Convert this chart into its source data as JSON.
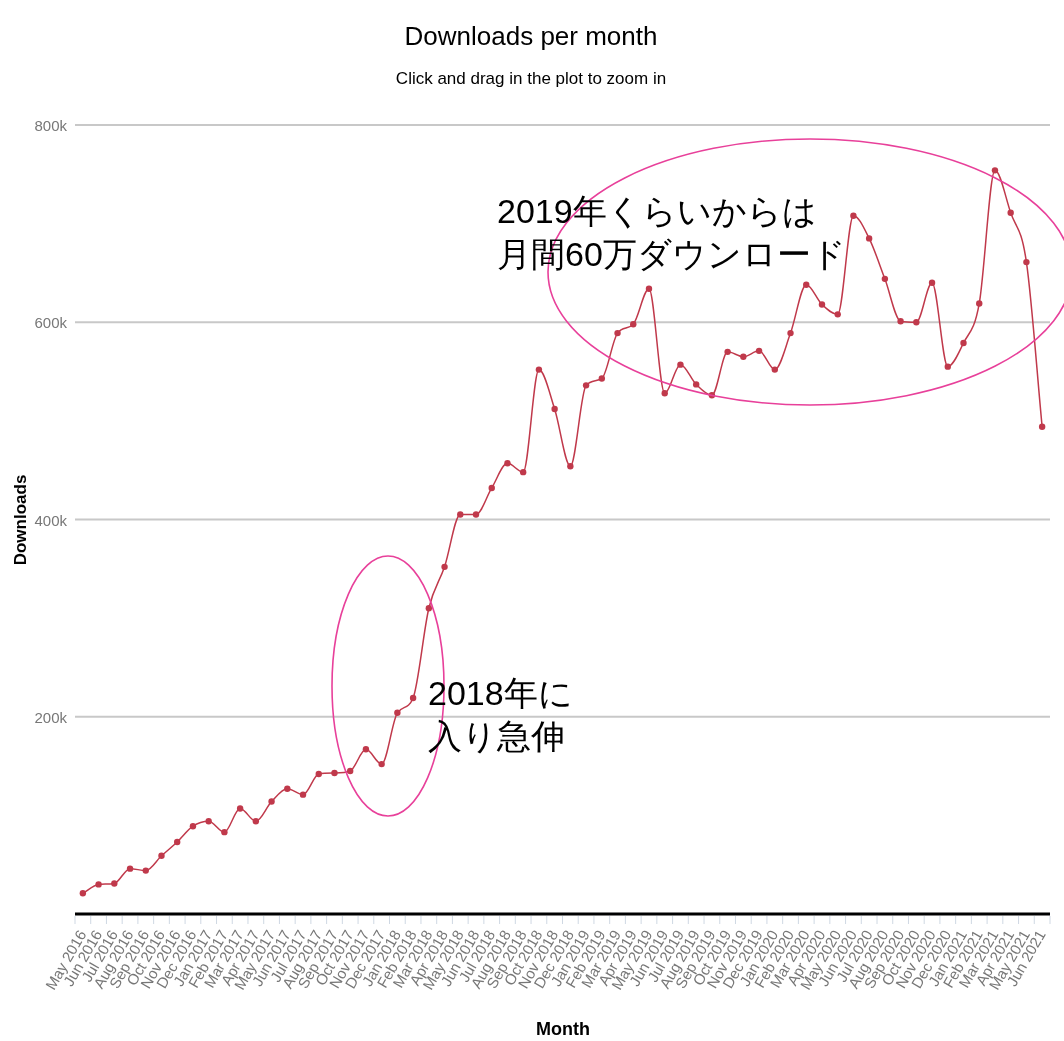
{
  "chart_data": {
    "type": "line",
    "title": "Downloads per month",
    "subtitle": "Click and drag in the plot to zoom in",
    "xlabel": "Month",
    "ylabel": "Downloads",
    "annotations": [
      "2018年に",
      "入り急伸",
      "2019年くらいからは",
      "月間60万ダウンロード"
    ],
    "categories": [
      "May 2016",
      "Jun 2016",
      "Jul 2016",
      "Aug 2016",
      "Sep 2016",
      "Oct 2016",
      "Nov 2016",
      "Dec 2016",
      "Jan 2017",
      "Feb 2017",
      "Mar 2017",
      "Apr 2017",
      "May 2017",
      "Jun 2017",
      "Jul 2017",
      "Aug 2017",
      "Sep 2017",
      "Oct 2017",
      "Nov 2017",
      "Dec 2017",
      "Jan 2018",
      "Feb 2018",
      "Mar 2018",
      "Apr 2018",
      "May 2018",
      "Jun 2018",
      "Jul 2018",
      "Aug 2018",
      "Sep 2018",
      "Oct 2018",
      "Nov 2018",
      "Dec 2018",
      "Jan 2019",
      "Feb 2019",
      "Mar 2019",
      "Apr 2019",
      "May 2019",
      "Jun 2019",
      "Jul 2019",
      "Aug 2019",
      "Sep 2019",
      "Oct 2019",
      "Nov 2019",
      "Dec 2019",
      "Jan 2020",
      "Feb 2020",
      "Mar 2020",
      "Apr 2020",
      "May 2020",
      "Jun 2020",
      "Jul 2020",
      "Aug 2020",
      "Sep 2020",
      "Oct 2020",
      "Nov 2020",
      "Dec 2020",
      "Jan 2021",
      "Feb 2021",
      "Mar 2021",
      "Apr 2021",
      "May 2021",
      "Jun 2021"
    ],
    "series": [
      {
        "color": "#c0394b",
        "values": [
          21000,
          30000,
          31000,
          46000,
          44000,
          59000,
          73000,
          89000,
          94000,
          83000,
          107000,
          94000,
          114000,
          127000,
          121000,
          142000,
          143000,
          145000,
          167000,
          152000,
          204000,
          219000,
          310000,
          352000,
          405000,
          405000,
          432000,
          457000,
          448000,
          552000,
          512000,
          454000,
          536000,
          543000,
          589000,
          598000,
          634000,
          528000,
          557000,
          537000,
          526000,
          570000,
          565000,
          571000,
          552000,
          589000,
          638000,
          618000,
          608000,
          708000,
          685000,
          644000,
          601000,
          600000,
          640000,
          555000,
          579000,
          619000,
          754000,
          711000,
          661000,
          494000
        ]
      }
    ],
    "ylim": [
      0,
      800000
    ],
    "yticks": [
      {
        "value": 200000,
        "label": "200k"
      },
      {
        "value": 400000,
        "label": "400k"
      },
      {
        "value": 600000,
        "label": "600k"
      },
      {
        "value": 800000,
        "label": "800k"
      }
    ],
    "grid": "y",
    "marker": "circle",
    "line_style": "solid"
  }
}
